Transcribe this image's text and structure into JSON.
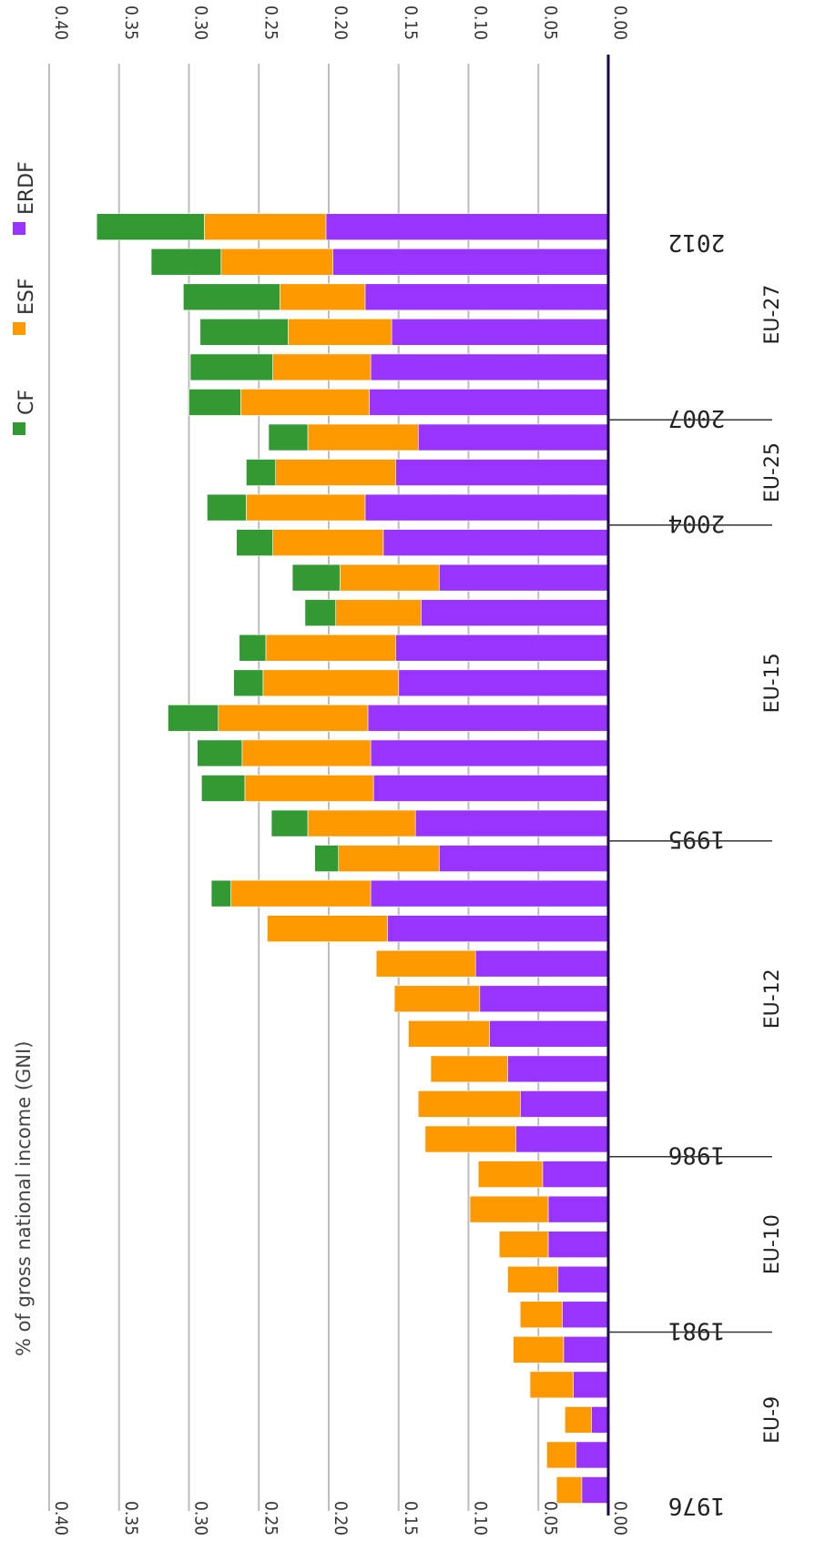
{
  "chart_data": {
    "type": "bar",
    "stacked": true,
    "orientation": "rotated-90",
    "ylabel": "% of gross national income (GNI)",
    "ylim": [
      0,
      0.4
    ],
    "yticks": [
      "0.00",
      "0.05",
      "0.10",
      "0.15",
      "0.20",
      "0.25",
      "0.30",
      "0.35",
      "0.40"
    ],
    "grid": true,
    "legend": {
      "position": "top",
      "entries": [
        "CF",
        "ESF",
        "ERDF"
      ]
    },
    "categories": [
      "1976",
      "1977",
      "1978",
      "1979",
      "1980",
      "1981",
      "1982",
      "1983",
      "1984",
      "1985",
      "1986",
      "1987",
      "1988",
      "1989",
      "1990",
      "1991",
      "1992",
      "1993",
      "1994",
      "1995",
      "1996",
      "1997",
      "1998",
      "1999",
      "2000",
      "2001",
      "2002",
      "2003",
      "2004",
      "2005",
      "2006",
      "2007",
      "2008",
      "2009",
      "2010",
      "2011",
      "2012"
    ],
    "year_labels": [
      {
        "label": "1976",
        "category": "1976"
      },
      {
        "label": "1981",
        "category": "1981"
      },
      {
        "label": "1986",
        "category": "1986"
      },
      {
        "label": "1995",
        "category": "1995"
      },
      {
        "label": "2004",
        "category": "2004"
      },
      {
        "label": "2007",
        "category": "2007"
      },
      {
        "label": "2012",
        "category": "2012"
      }
    ],
    "group_labels": [
      {
        "label": "EU-9",
        "from": "1976",
        "to": "1980"
      },
      {
        "label": "EU-10",
        "from": "1981",
        "to": "1985"
      },
      {
        "label": "EU-12",
        "from": "1986",
        "to": "1994"
      },
      {
        "label": "EU-15",
        "from": "1995",
        "to": "2003"
      },
      {
        "label": "EU-25",
        "from": "2004",
        "to": "2006"
      },
      {
        "label": "EU-27",
        "from": "2007",
        "to": "2012"
      }
    ],
    "series": [
      {
        "name": "ERDF",
        "color": "#9933ff",
        "values": [
          0.019,
          0.023,
          0.012,
          0.025,
          0.032,
          0.033,
          0.036,
          0.043,
          0.043,
          0.047,
          0.066,
          0.063,
          0.072,
          0.085,
          0.092,
          0.095,
          0.158,
          0.17,
          0.121,
          0.138,
          0.168,
          0.17,
          0.172,
          0.15,
          0.152,
          0.134,
          0.121,
          0.161,
          0.174,
          0.152,
          0.136,
          0.171,
          0.17,
          0.155,
          0.174,
          0.197,
          0.202
        ]
      },
      {
        "name": "ESF",
        "color": "#ff9900",
        "values": [
          0.018,
          0.021,
          0.019,
          0.031,
          0.036,
          0.03,
          0.036,
          0.035,
          0.056,
          0.046,
          0.065,
          0.073,
          0.055,
          0.058,
          0.061,
          0.071,
          0.086,
          0.1,
          0.072,
          0.077,
          0.092,
          0.092,
          0.107,
          0.097,
          0.093,
          0.061,
          0.071,
          0.079,
          0.085,
          0.086,
          0.079,
          0.092,
          0.07,
          0.074,
          0.061,
          0.08,
          0.087
        ]
      },
      {
        "name": "CF",
        "color": "#339933",
        "values": [
          0,
          0,
          0,
          0,
          0,
          0,
          0,
          0,
          0,
          0,
          0,
          0,
          0,
          0,
          0,
          0,
          0,
          0.014,
          0.017,
          0.026,
          0.031,
          0.032,
          0.036,
          0.021,
          0.019,
          0.022,
          0.034,
          0.026,
          0.028,
          0.021,
          0.028,
          0.037,
          0.059,
          0.063,
          0.069,
          0.05,
          0.077
        ]
      }
    ]
  }
}
